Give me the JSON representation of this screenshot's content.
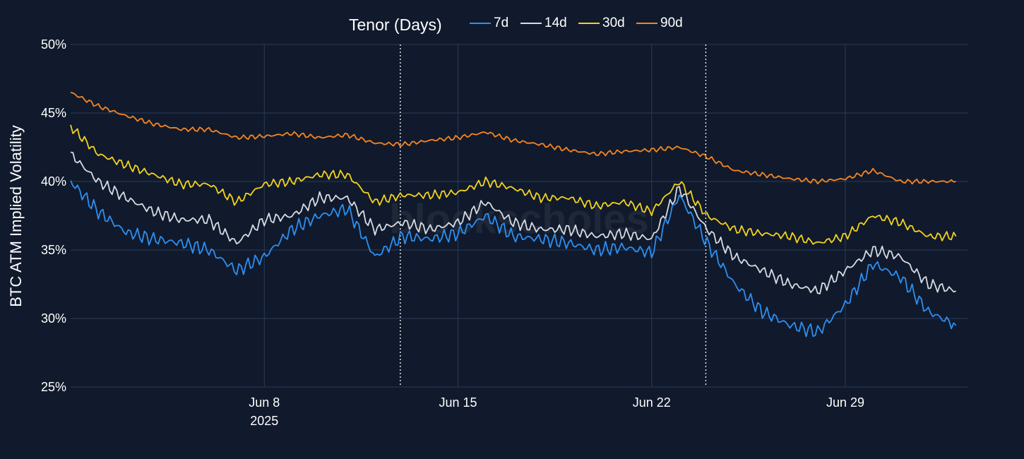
{
  "chart_data": {
    "type": "line",
    "ylabel": "BTC ATM Implied Volatility",
    "legend_title": "Tenor (Days)",
    "watermark": "blockscholes",
    "y_ticks": [
      "25%",
      "30%",
      "35%",
      "40%",
      "45%",
      "50%"
    ],
    "ylim": [
      25,
      50
    ],
    "xlim": [
      "2025-06-01T00:00",
      "2025-07-03T10:00"
    ],
    "x_ticks": [
      {
        "date": "2025-06-08",
        "label": "Jun 8",
        "sublabel": "2025"
      },
      {
        "date": "2025-06-15",
        "label": "Jun 15",
        "sublabel": ""
      },
      {
        "date": "2025-06-22",
        "label": "Jun 22",
        "sublabel": ""
      },
      {
        "date": "2025-06-29",
        "label": "Jun 29",
        "sublabel": ""
      }
    ],
    "vertical_markers": [
      "2025-06-12T22:00",
      "2025-06-23T23:00"
    ],
    "grid": true,
    "legend_position": "top-center",
    "x_dates": [
      "2025-06-01",
      "2025-06-02",
      "2025-06-03",
      "2025-06-04",
      "2025-06-05",
      "2025-06-06",
      "2025-06-07",
      "2025-06-08",
      "2025-06-09",
      "2025-06-10",
      "2025-06-11",
      "2025-06-12",
      "2025-06-13",
      "2025-06-14",
      "2025-06-15",
      "2025-06-16",
      "2025-06-17",
      "2025-06-18",
      "2025-06-19",
      "2025-06-20",
      "2025-06-21",
      "2025-06-22",
      "2025-06-23",
      "2025-06-24",
      "2025-06-25",
      "2025-06-26",
      "2025-06-27",
      "2025-06-28",
      "2025-06-29",
      "2025-06-30",
      "2025-07-01",
      "2025-07-02",
      "2025-07-03"
    ],
    "series": [
      {
        "name": "90d",
        "color": "#f7851f",
        "values": [
          46.5,
          45.5,
          44.8,
          44.2,
          43.8,
          43.8,
          43.2,
          43.3,
          43.5,
          43.2,
          43.4,
          42.8,
          42.7,
          43.0,
          43.2,
          43.6,
          43.0,
          42.7,
          42.3,
          42.0,
          42.2,
          42.3,
          42.5,
          41.8,
          40.8,
          40.5,
          40.2,
          40.0,
          40.2,
          40.8,
          40.0,
          40.0,
          40.0
        ]
      },
      {
        "name": "30d",
        "color": "#f4d21d",
        "values": [
          44.0,
          42.0,
          41.2,
          40.5,
          39.8,
          39.8,
          38.5,
          39.8,
          40.0,
          40.5,
          40.5,
          38.5,
          39.0,
          39.0,
          39.2,
          40.0,
          39.5,
          38.8,
          38.8,
          38.2,
          38.5,
          37.8,
          40.0,
          37.5,
          36.5,
          36.2,
          36.0,
          35.5,
          36.0,
          37.5,
          37.0,
          36.0,
          36.0
        ]
      },
      {
        "name": "14d",
        "color": "#d7dbe3",
        "values": [
          42.0,
          40.0,
          38.8,
          37.8,
          37.2,
          37.2,
          35.5,
          37.2,
          37.5,
          38.8,
          38.8,
          36.5,
          37.0,
          36.5,
          37.0,
          38.5,
          37.0,
          36.5,
          36.5,
          36.0,
          36.2,
          35.8,
          39.5,
          36.5,
          34.5,
          33.5,
          32.5,
          32.0,
          33.5,
          35.0,
          34.5,
          32.5,
          32.0
        ]
      },
      {
        "name": "7d",
        "color": "#2d8ff2",
        "values": [
          40.0,
          37.8,
          36.3,
          35.8,
          35.5,
          35.0,
          33.5,
          34.5,
          36.5,
          37.5,
          38.0,
          34.5,
          36.0,
          35.8,
          36.2,
          37.5,
          36.0,
          35.8,
          35.5,
          35.0,
          35.2,
          34.8,
          39.0,
          35.5,
          32.5,
          30.5,
          29.5,
          29.0,
          31.0,
          34.0,
          33.0,
          30.5,
          29.5
        ]
      }
    ]
  }
}
